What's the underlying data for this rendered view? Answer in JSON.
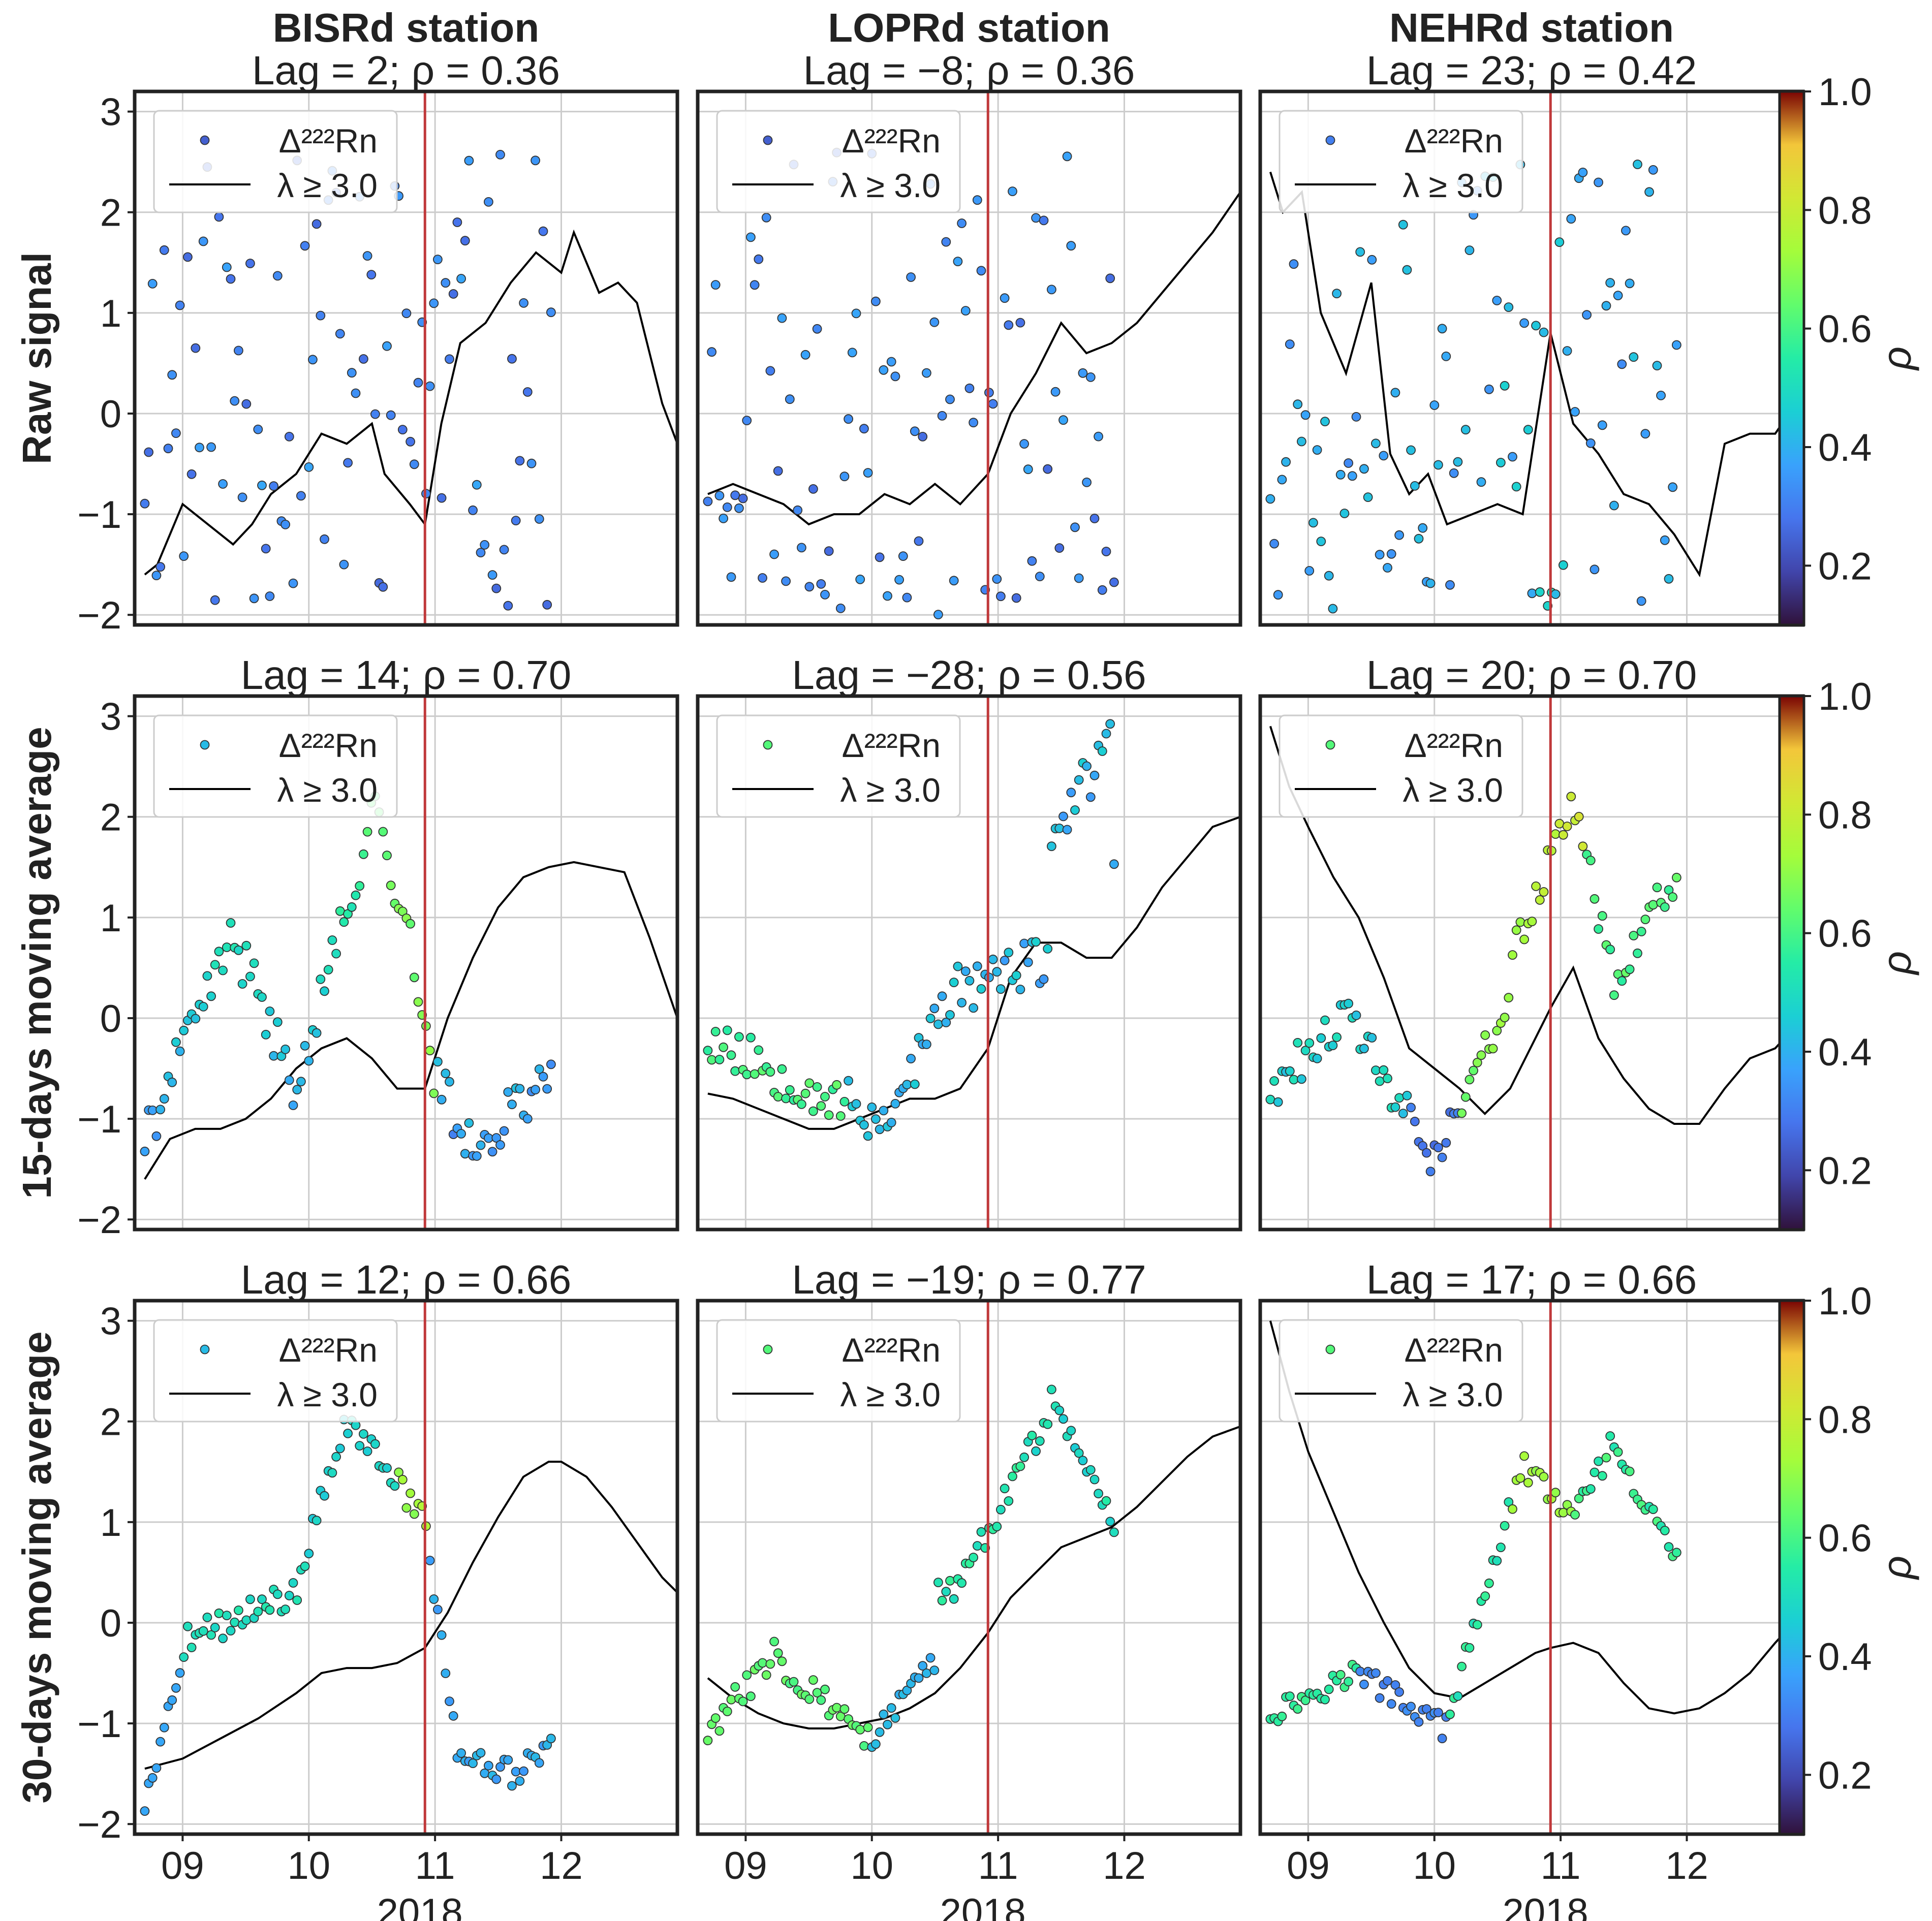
{
  "figure": {
    "column_titles": [
      "BISRd station",
      "LOPRd station",
      "NEHRd station"
    ],
    "row_labels": [
      "Raw signal",
      "15-days moving average",
      "30-days moving average"
    ],
    "x_tick_labels": [
      "09",
      "10",
      "11",
      "12"
    ],
    "x_year_label": "2018",
    "legend_labels": [
      "Δ²²²Rn",
      "λ ≥ 3.0"
    ],
    "colorbar_label": "ρ",
    "colorbar_ticks": [
      0.2,
      0.4,
      0.6,
      0.8,
      1.0
    ],
    "colorbar_tick_labels": [
      "0.2",
      "0.4",
      "0.6",
      "0.8",
      "1.0"
    ],
    "colors": {
      "event_line": "#c0393b",
      "signal_line": "#000000",
      "grid": "#cccccc",
      "frame": "#222222"
    }
  },
  "chart_data": [
    {
      "type": "scatter",
      "station": "BISRd",
      "row": "Raw signal",
      "title": "Lag = 2; ρ = 0.36",
      "ylim": [
        -2.1,
        3.2
      ],
      "yticks": [
        -2,
        -1,
        0,
        1,
        2,
        3
      ],
      "event_x": 10.92,
      "rho": 0.36,
      "seed": 11,
      "scatter_shape": "noise",
      "signal": {
        "x": [
          8.7,
          8.8,
          9.0,
          9.2,
          9.4,
          9.55,
          9.7,
          9.9,
          10.1,
          10.3,
          10.5,
          10.6,
          10.8,
          10.92,
          11.05,
          11.2,
          11.4,
          11.6,
          11.8,
          12.0,
          12.1,
          12.3,
          12.45,
          12.6,
          12.8,
          12.92
        ],
        "y": [
          -1.6,
          -1.5,
          -0.9,
          -1.1,
          -1.3,
          -1.1,
          -0.8,
          -0.6,
          -0.2,
          -0.3,
          -0.1,
          -0.6,
          -0.9,
          -1.1,
          -0.1,
          0.7,
          0.9,
          1.3,
          1.6,
          1.4,
          1.8,
          1.2,
          1.3,
          1.1,
          0.1,
          -0.3
        ]
      }
    },
    {
      "type": "scatter",
      "station": "LOPRd",
      "row": "Raw signal",
      "title": "Lag = −8; ρ = 0.36",
      "ylim": [
        -2.1,
        3.2
      ],
      "yticks": [
        -2,
        -1,
        0,
        1,
        2,
        3
      ],
      "event_x": 10.92,
      "rho": 0.36,
      "seed": 23,
      "scatter_shape": "noise",
      "signal": {
        "x": [
          8.7,
          8.9,
          9.1,
          9.3,
          9.5,
          9.7,
          9.9,
          10.1,
          10.3,
          10.5,
          10.7,
          10.92,
          11.1,
          11.3,
          11.5,
          11.7,
          11.9,
          12.1,
          12.3,
          12.5,
          12.7,
          12.92
        ],
        "y": [
          -0.8,
          -0.7,
          -0.8,
          -0.9,
          -1.1,
          -1.0,
          -1.0,
          -0.8,
          -0.9,
          -0.7,
          -0.9,
          -0.6,
          0.0,
          0.4,
          0.9,
          0.6,
          0.7,
          0.9,
          1.2,
          1.5,
          1.8,
          2.2
        ]
      }
    },
    {
      "type": "scatter",
      "station": "NEHRd",
      "row": "Raw signal",
      "title": "Lag = 23; ρ = 0.42",
      "ylim": [
        -2.1,
        3.2
      ],
      "yticks": [
        -2,
        -1,
        0,
        1,
        2,
        3
      ],
      "event_x": 10.92,
      "rho": 0.42,
      "seed": 37,
      "scatter_shape": "noise",
      "signal": {
        "x": [
          8.7,
          8.8,
          8.95,
          9.1,
          9.3,
          9.5,
          9.65,
          9.8,
          9.95,
          10.1,
          10.3,
          10.5,
          10.7,
          10.92,
          11.1,
          11.3,
          11.5,
          11.7,
          11.9,
          12.1,
          12.3,
          12.5,
          12.7,
          12.92
        ],
        "y": [
          2.4,
          2.0,
          2.2,
          1.0,
          0.4,
          1.3,
          -0.4,
          -0.8,
          -0.6,
          -1.1,
          -1.0,
          -0.9,
          -1.0,
          0.8,
          -0.1,
          -0.4,
          -0.8,
          -0.9,
          -1.2,
          -1.6,
          -0.3,
          -0.2,
          -0.2,
          0.2
        ]
      }
    },
    {
      "type": "scatter",
      "station": "BISRd",
      "row": "15-days moving average",
      "title": "Lag = 14; ρ = 0.70",
      "ylim": [
        -2.1,
        3.2
      ],
      "yticks": [
        -2,
        -1,
        0,
        1,
        2,
        3
      ],
      "event_x": 10.92,
      "rho": 0.7,
      "seed": 41,
      "scatter_shape": "bisrd",
      "signal": {
        "x": [
          8.7,
          8.9,
          9.1,
          9.3,
          9.5,
          9.7,
          9.9,
          10.1,
          10.3,
          10.5,
          10.7,
          10.92,
          11.1,
          11.3,
          11.5,
          11.7,
          11.9,
          12.1,
          12.3,
          12.5,
          12.7,
          12.92
        ],
        "y": [
          -1.6,
          -1.2,
          -1.1,
          -1.1,
          -1.0,
          -0.8,
          -0.5,
          -0.3,
          -0.2,
          -0.4,
          -0.7,
          -0.7,
          0.0,
          0.6,
          1.1,
          1.4,
          1.5,
          1.55,
          1.5,
          1.45,
          0.8,
          0.0
        ]
      }
    },
    {
      "type": "scatter",
      "station": "LOPRd",
      "row": "15-days moving average",
      "title": "Lag = −28; ρ = 0.56",
      "ylim": [
        -2.1,
        3.2
      ],
      "yticks": [
        -2,
        -1,
        0,
        1,
        2,
        3
      ],
      "event_x": 10.92,
      "rho": 0.56,
      "seed": 53,
      "scatter_shape": "loprd",
      "signal": {
        "x": [
          8.7,
          8.9,
          9.1,
          9.3,
          9.5,
          9.7,
          9.9,
          10.1,
          10.3,
          10.5,
          10.7,
          10.92,
          11.1,
          11.3,
          11.5,
          11.7,
          11.9,
          12.1,
          12.3,
          12.5,
          12.7,
          12.92
        ],
        "y": [
          -0.75,
          -0.8,
          -0.9,
          -1.0,
          -1.1,
          -1.1,
          -1.0,
          -0.9,
          -0.8,
          -0.8,
          -0.7,
          -0.3,
          0.4,
          0.75,
          0.75,
          0.6,
          0.6,
          0.9,
          1.3,
          1.6,
          1.9,
          2.0
        ]
      }
    },
    {
      "type": "scatter",
      "station": "NEHRd",
      "row": "15-days moving average",
      "title": "Lag = 20; ρ = 0.70",
      "ylim": [
        -2.1,
        3.2
      ],
      "yticks": [
        -2,
        -1,
        0,
        1,
        2,
        3
      ],
      "event_x": 10.92,
      "rho": 0.7,
      "seed": 61,
      "scatter_shape": "nehrd",
      "signal": {
        "x": [
          8.7,
          8.85,
          9.0,
          9.2,
          9.4,
          9.6,
          9.8,
          10.0,
          10.2,
          10.4,
          10.6,
          10.8,
          10.92,
          11.1,
          11.3,
          11.5,
          11.7,
          11.9,
          12.1,
          12.3,
          12.5,
          12.7,
          12.92
        ],
        "y": [
          2.9,
          2.3,
          1.9,
          1.4,
          1.0,
          0.4,
          -0.3,
          -0.5,
          -0.7,
          -0.95,
          -0.7,
          -0.2,
          0.1,
          0.5,
          -0.2,
          -0.6,
          -0.9,
          -1.05,
          -1.05,
          -0.7,
          -0.4,
          -0.3,
          0.0
        ]
      }
    },
    {
      "type": "scatter",
      "station": "BISRd",
      "row": "30-days moving average",
      "title": "Lag = 12; ρ = 0.66",
      "ylim": [
        -2.1,
        3.2
      ],
      "yticks": [
        -2,
        -1,
        0,
        1,
        2,
        3
      ],
      "event_x": 10.92,
      "rho": 0.66,
      "seed": 71,
      "scatter_shape": "bisrd30",
      "signal": {
        "x": [
          8.7,
          9.0,
          9.3,
          9.6,
          9.9,
          10.1,
          10.3,
          10.5,
          10.7,
          10.92,
          11.1,
          11.3,
          11.5,
          11.7,
          11.9,
          12.0,
          12.2,
          12.4,
          12.6,
          12.8,
          12.92
        ],
        "y": [
          -1.45,
          -1.35,
          -1.15,
          -0.95,
          -0.7,
          -0.5,
          -0.45,
          -0.45,
          -0.4,
          -0.25,
          0.1,
          0.6,
          1.05,
          1.45,
          1.6,
          1.6,
          1.45,
          1.15,
          0.8,
          0.45,
          0.3
        ]
      }
    },
    {
      "type": "scatter",
      "station": "LOPRd",
      "row": "30-days moving average",
      "title": "Lag = −19; ρ = 0.77",
      "ylim": [
        -2.1,
        3.2
      ],
      "yticks": [
        -2,
        -1,
        0,
        1,
        2,
        3
      ],
      "event_x": 10.92,
      "rho": 0.77,
      "seed": 83,
      "scatter_shape": "loprd30",
      "signal": {
        "x": [
          8.7,
          8.9,
          9.1,
          9.3,
          9.5,
          9.7,
          9.9,
          10.1,
          10.3,
          10.5,
          10.7,
          10.92,
          11.1,
          11.3,
          11.5,
          11.7,
          11.9,
          12.1,
          12.3,
          12.5,
          12.7,
          12.92
        ],
        "y": [
          -0.55,
          -0.75,
          -0.9,
          -1.0,
          -1.05,
          -1.05,
          -1.0,
          -0.95,
          -0.85,
          -0.7,
          -0.45,
          -0.1,
          0.25,
          0.5,
          0.75,
          0.85,
          0.95,
          1.15,
          1.4,
          1.65,
          1.85,
          1.95
        ]
      }
    },
    {
      "type": "scatter",
      "station": "NEHRd",
      "row": "30-days moving average",
      "title": "Lag = 17; ρ = 0.66",
      "ylim": [
        -2.1,
        3.2
      ],
      "yticks": [
        -2,
        -1,
        0,
        1,
        2,
        3
      ],
      "event_x": 10.92,
      "rho": 0.66,
      "seed": 97,
      "scatter_shape": "nehrd30",
      "signal": {
        "x": [
          8.7,
          8.85,
          9.0,
          9.2,
          9.4,
          9.6,
          9.8,
          10.0,
          10.2,
          10.4,
          10.6,
          10.8,
          10.92,
          11.1,
          11.3,
          11.5,
          11.7,
          11.9,
          12.1,
          12.3,
          12.5,
          12.7,
          12.92
        ],
        "y": [
          3.0,
          2.3,
          1.7,
          1.1,
          0.5,
          0.0,
          -0.45,
          -0.7,
          -0.75,
          -0.6,
          -0.45,
          -0.3,
          -0.25,
          -0.2,
          -0.3,
          -0.6,
          -0.85,
          -0.9,
          -0.85,
          -0.7,
          -0.5,
          -0.2,
          0.1
        ]
      }
    }
  ]
}
